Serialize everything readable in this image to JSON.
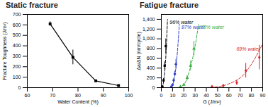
{
  "chart_data": [
    {
      "type": "line",
      "title": "Static fracture",
      "x_label": "Water Content (%)",
      "y_label": "Fracture Toughness (J/m²)",
      "x": [
        69,
        78,
        87,
        96
      ],
      "values": [
        610,
        290,
        65,
        20
      ],
      "errors": [
        20,
        70,
        10,
        5
      ],
      "color": "#000000",
      "marker": "square",
      "xlim": [
        60,
        100
      ],
      "xticks": [
        60,
        70,
        80,
        90,
        100
      ],
      "ylim": [
        0,
        700
      ],
      "yticks": [
        0,
        100,
        200,
        300,
        400,
        500,
        600,
        700
      ]
    },
    {
      "type": "scatter",
      "title": "Fatigue fracture",
      "x_label": "G (J/m²)",
      "y_label": "Δa/ΔN (nm/cycle)",
      "xlim": [
        0,
        90
      ],
      "xticks": [
        0,
        10,
        20,
        30,
        40,
        50,
        60,
        70,
        80,
        90
      ],
      "ylim": [
        0,
        1500
      ],
      "yticks": [
        0,
        200,
        400,
        600,
        800,
        1000,
        1200,
        1400
      ],
      "series": [
        {
          "name": "96% water",
          "color": "#000000",
          "marker": "square",
          "line_style": "dashed",
          "x": [
            1,
            2,
            3,
            4
          ],
          "values": [
            20,
            150,
            450,
            850
          ],
          "errors": [
            10,
            40,
            80,
            150
          ],
          "fit_x": [
            0.5,
            1.5,
            2.5,
            3.5,
            4.5,
            5.5
          ],
          "fit_y": [
            0,
            60,
            200,
            450,
            850,
            1400
          ]
        },
        {
          "name": "87% water",
          "color": "#2f3fc8",
          "marker": "circle",
          "line_style": "dashed",
          "x": [
            9,
            10,
            11,
            12,
            13
          ],
          "values": [
            20,
            60,
            150,
            280,
            480
          ],
          "errors": [
            10,
            20,
            40,
            60,
            100
          ],
          "fit_x": [
            8,
            10,
            12,
            14,
            16
          ],
          "fit_y": [
            0,
            60,
            250,
            650,
            1300
          ]
        },
        {
          "name": "78% water",
          "color": "#3cb043",
          "marker": "triangle",
          "line_style": "dashed",
          "x": [
            17,
            20,
            23,
            26,
            29
          ],
          "values": [
            20,
            60,
            200,
            450,
            800
          ],
          "errors": [
            10,
            20,
            50,
            100,
            150
          ],
          "fit_x": [
            15,
            20,
            25,
            30,
            33
          ],
          "fit_y": [
            0,
            60,
            350,
            850,
            1300
          ]
        },
        {
          "name": "69% water",
          "color": "#d7262b",
          "marker": "diamond",
          "line_style": "dashed",
          "x": [
            45,
            55,
            67,
            75,
            87
          ],
          "values": [
            20,
            40,
            100,
            350,
            620
          ],
          "errors": [
            10,
            20,
            50,
            150,
            250
          ],
          "fit_x": [
            40,
            55,
            70,
            80,
            90
          ],
          "fit_y": [
            0,
            40,
            200,
            480,
            900
          ]
        }
      ]
    }
  ]
}
